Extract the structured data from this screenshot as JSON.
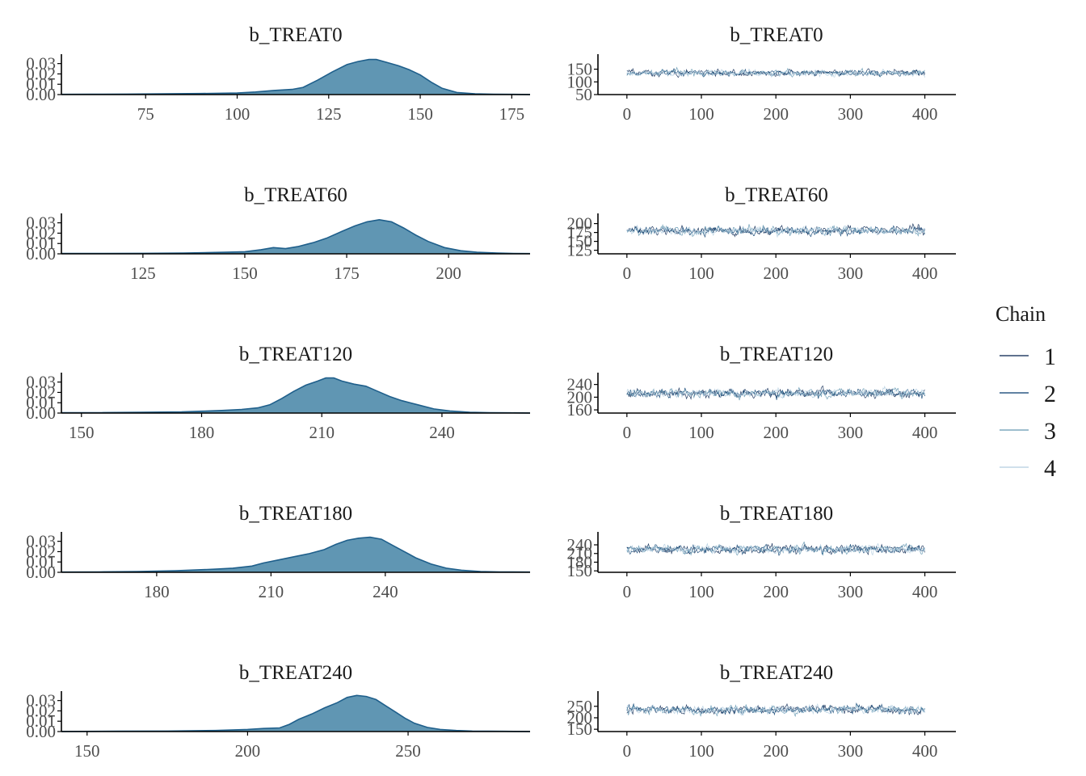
{
  "colors": {
    "density_fill": "#6096b3",
    "density_line": "#1f5f8b",
    "axis": "#000000",
    "chain": [
      "#011f4b",
      "#03396c",
      "#6497b1",
      "#b3cde0"
    ]
  },
  "legend": {
    "title": "Chain",
    "items": [
      "1",
      "2",
      "3",
      "4"
    ],
    "placement": "right"
  },
  "chart_data": [
    {
      "type": "area",
      "title": "b_TREAT0",
      "xlim": [
        52,
        180
      ],
      "ylim": [
        0,
        0.036
      ],
      "xticks": [
        75,
        100,
        125,
        150,
        175
      ],
      "yticks": [
        0.0,
        0.01,
        0.02,
        0.03
      ],
      "ytick_labels": [
        "0.00",
        "0.01",
        "0.02",
        "0.03"
      ],
      "density": {
        "x": [
          52,
          60,
          70,
          80,
          90,
          100,
          105,
          110,
          115,
          118,
          122,
          126,
          130,
          133,
          136,
          138,
          141,
          144,
          147,
          150,
          153,
          156,
          160,
          165,
          170,
          175,
          180
        ],
        "y": [
          0.0002,
          0.0003,
          0.0005,
          0.0008,
          0.001,
          0.0015,
          0.0025,
          0.004,
          0.005,
          0.007,
          0.014,
          0.022,
          0.029,
          0.032,
          0.034,
          0.034,
          0.031,
          0.028,
          0.024,
          0.019,
          0.012,
          0.006,
          0.002,
          0.0008,
          0.0004,
          0.0002,
          0.0001
        ]
      }
    },
    {
      "type": "line",
      "title": "b_TREAT0",
      "xlim": [
        -15,
        420
      ],
      "ylim": [
        50,
        190
      ],
      "xticks": [
        0,
        100,
        200,
        300,
        400
      ],
      "yticks": [
        50,
        100,
        150
      ],
      "series": [
        {
          "name": "1",
          "mean": 135,
          "sd": 11
        },
        {
          "name": "2",
          "mean": 135,
          "sd": 11
        },
        {
          "name": "3",
          "mean": 135,
          "sd": 11
        },
        {
          "name": "4",
          "mean": 135,
          "sd": 11
        }
      ]
    },
    {
      "type": "area",
      "title": "b_TREAT60",
      "xlim": [
        105,
        220
      ],
      "ylim": [
        0,
        0.036
      ],
      "xticks": [
        125,
        150,
        175,
        200
      ],
      "yticks": [
        0.0,
        0.01,
        0.02,
        0.03
      ],
      "ytick_labels": [
        "0.00",
        "0.01",
        "0.02",
        "0.03"
      ],
      "density": {
        "x": [
          105,
          115,
          125,
          135,
          145,
          150,
          154,
          157,
          160,
          163,
          167,
          170,
          174,
          177,
          180,
          183,
          186,
          189,
          192,
          195,
          199,
          203,
          207,
          212,
          216,
          220
        ],
        "y": [
          0.0003,
          0.0003,
          0.0005,
          0.0008,
          0.0015,
          0.002,
          0.004,
          0.006,
          0.005,
          0.007,
          0.011,
          0.015,
          0.022,
          0.027,
          0.031,
          0.033,
          0.031,
          0.025,
          0.018,
          0.012,
          0.006,
          0.003,
          0.0015,
          0.0007,
          0.0003,
          0.0002
        ]
      }
    },
    {
      "type": "line",
      "title": "b_TREAT60",
      "xlim": [
        -15,
        420
      ],
      "ylim": [
        115,
        215
      ],
      "xticks": [
        0,
        100,
        200,
        300,
        400
      ],
      "yticks": [
        125,
        150,
        175,
        200
      ],
      "series": [
        {
          "name": "1",
          "mean": 180,
          "sd": 10
        },
        {
          "name": "2",
          "mean": 180,
          "sd": 10
        },
        {
          "name": "3",
          "mean": 180,
          "sd": 10
        },
        {
          "name": "4",
          "mean": 180,
          "sd": 10
        }
      ]
    },
    {
      "type": "area",
      "title": "b_TREAT120",
      "xlim": [
        145,
        262
      ],
      "ylim": [
        0,
        0.036
      ],
      "xticks": [
        150,
        180,
        210,
        240
      ],
      "yticks": [
        0.0,
        0.01,
        0.02,
        0.03
      ],
      "ytick_labels": [
        "0.00",
        "0.01",
        "0.02",
        "0.03"
      ],
      "density": {
        "x": [
          145,
          155,
          165,
          175,
          180,
          185,
          190,
          194,
          197,
          200,
          203,
          206,
          209,
          211,
          213,
          215,
          218,
          221,
          224,
          227,
          230,
          234,
          238,
          242,
          247,
          252,
          257,
          262
        ],
        "y": [
          0.0003,
          0.0004,
          0.0008,
          0.0012,
          0.0018,
          0.0025,
          0.0035,
          0.005,
          0.008,
          0.014,
          0.021,
          0.027,
          0.031,
          0.034,
          0.034,
          0.031,
          0.028,
          0.026,
          0.021,
          0.016,
          0.012,
          0.008,
          0.004,
          0.002,
          0.0008,
          0.0003,
          0.0002,
          0.0001
        ]
      }
    },
    {
      "type": "line",
      "title": "b_TREAT120",
      "xlim": [
        -15,
        420
      ],
      "ylim": [
        150,
        262
      ],
      "xticks": [
        0,
        100,
        200,
        300,
        400
      ],
      "yticks": [
        160,
        200,
        240
      ],
      "series": [
        {
          "name": "1",
          "mean": 213,
          "sd": 12
        },
        {
          "name": "2",
          "mean": 213,
          "sd": 12
        },
        {
          "name": "3",
          "mean": 213,
          "sd": 12
        },
        {
          "name": "4",
          "mean": 213,
          "sd": 12
        }
      ]
    },
    {
      "type": "area",
      "title": "b_TREAT180",
      "xlim": [
        155,
        278
      ],
      "ylim": [
        0,
        0.036
      ],
      "xticks": [
        180,
        210,
        240
      ],
      "yticks": [
        0.0,
        0.01,
        0.02,
        0.03
      ],
      "ytick_labels": [
        "0.00",
        "0.01",
        "0.02",
        "0.03"
      ],
      "density": {
        "x": [
          155,
          165,
          175,
          185,
          195,
          200,
          205,
          208,
          212,
          216,
          220,
          224,
          227,
          230,
          233,
          236,
          239,
          242,
          245,
          248,
          252,
          256,
          260,
          265,
          270,
          278
        ],
        "y": [
          0.0002,
          0.0004,
          0.0008,
          0.0015,
          0.003,
          0.004,
          0.006,
          0.009,
          0.012,
          0.015,
          0.018,
          0.022,
          0.027,
          0.031,
          0.033,
          0.034,
          0.032,
          0.026,
          0.02,
          0.014,
          0.008,
          0.004,
          0.002,
          0.0008,
          0.0004,
          0.0002
        ]
      }
    },
    {
      "type": "line",
      "title": "b_TREAT180",
      "xlim": [
        -15,
        420
      ],
      "ylim": [
        145,
        268
      ],
      "xticks": [
        0,
        100,
        200,
        300,
        400
      ],
      "yticks": [
        150,
        180,
        210,
        240
      ],
      "series": [
        {
          "name": "1",
          "mean": 225,
          "sd": 13
        },
        {
          "name": "2",
          "mean": 225,
          "sd": 13
        },
        {
          "name": "3",
          "mean": 225,
          "sd": 13
        },
        {
          "name": "4",
          "mean": 225,
          "sd": 13
        }
      ]
    },
    {
      "type": "area",
      "title": "b_TREAT240",
      "xlim": [
        142,
        288
      ],
      "ylim": [
        0,
        0.036
      ],
      "xticks": [
        150,
        200,
        250
      ],
      "yticks": [
        0.0,
        0.01,
        0.02,
        0.03
      ],
      "ytick_labels": [
        "0.00",
        "0.01",
        "0.02",
        "0.03"
      ],
      "density": {
        "x": [
          142,
          160,
          175,
          190,
          200,
          205,
          210,
          213,
          216,
          220,
          224,
          228,
          231,
          234,
          237,
          240,
          243,
          246,
          249,
          252,
          256,
          260,
          265,
          270,
          275,
          280,
          288
        ],
        "y": [
          0.0001,
          0.0003,
          0.0005,
          0.001,
          0.002,
          0.003,
          0.0035,
          0.007,
          0.012,
          0.017,
          0.023,
          0.028,
          0.033,
          0.035,
          0.034,
          0.031,
          0.025,
          0.019,
          0.013,
          0.008,
          0.004,
          0.002,
          0.001,
          0.0005,
          0.0003,
          0.0002,
          0.0001
        ]
      }
    },
    {
      "type": "line",
      "title": "b_TREAT240",
      "xlim": [
        -15,
        420
      ],
      "ylim": [
        140,
        295
      ],
      "xticks": [
        0,
        100,
        200,
        300,
        400
      ],
      "yticks": [
        150,
        200,
        250
      ],
      "series": [
        {
          "name": "1",
          "mean": 235,
          "sd": 16
        },
        {
          "name": "2",
          "mean": 235,
          "sd": 16
        },
        {
          "name": "3",
          "mean": 235,
          "sd": 16
        },
        {
          "name": "4",
          "mean": 235,
          "sd": 16
        }
      ]
    }
  ]
}
